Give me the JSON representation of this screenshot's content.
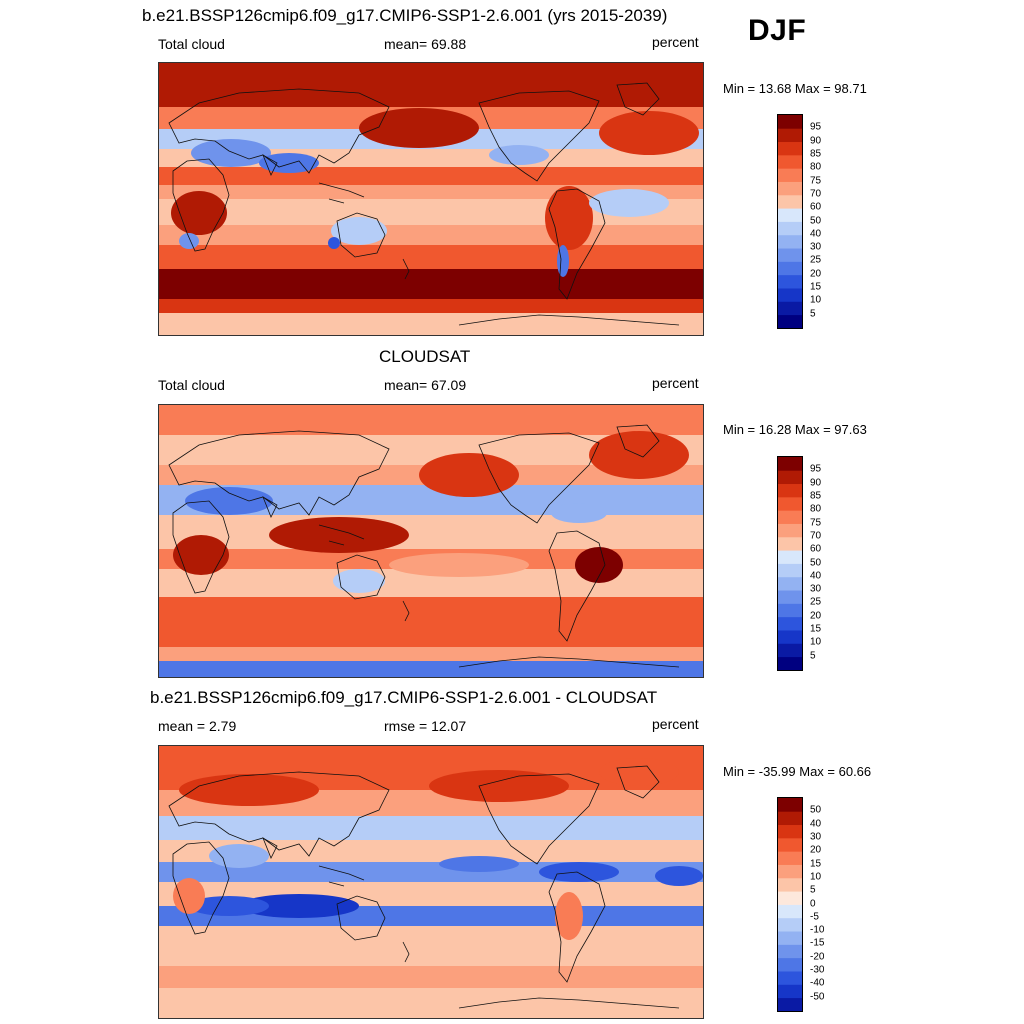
{
  "season": "DJF",
  "colors": {
    "warm": [
      "#fde8dc",
      "#fcc5a8",
      "#fba07d",
      "#f97c55",
      "#f0582f",
      "#d93512",
      "#b01a04",
      "#7d0000"
    ],
    "cool": [
      "#d8e7fb",
      "#b5cdf7",
      "#93b2f2",
      "#6f93ec",
      "#4e76e6",
      "#2d55dd",
      "#1636c8",
      "#0a1aa4",
      "#000080"
    ]
  },
  "panels": [
    {
      "title": "b.e21.BSSP126cmip6.f09_g17.CMIP6-SSP1-2.6.001 (yrs 2015-2039)",
      "left_label": "Total cloud",
      "center_label": "mean=  69.88",
      "right_label": "percent",
      "minmax": "Min =  13.68 Max =  98.71",
      "colorbar": {
        "levels": [
          "95",
          "90",
          "85",
          "80",
          "75",
          "70",
          "60",
          "50",
          "40",
          "30",
          "25",
          "20",
          "15",
          "10",
          "5"
        ],
        "zero_index": 7
      }
    },
    {
      "title": "CLOUDSAT",
      "left_label": "Total cloud",
      "center_label": "mean=  67.09",
      "right_label": "percent",
      "minmax": "Min =  16.28 Max =  97.63",
      "colorbar": {
        "levels": [
          "95",
          "90",
          "85",
          "80",
          "75",
          "70",
          "60",
          "50",
          "40",
          "30",
          "25",
          "20",
          "15",
          "10",
          "5"
        ],
        "zero_index": 7
      }
    },
    {
      "title": "b.e21.BSSP126cmip6.f09_g17.CMIP6-SSP1-2.6.001 - CLOUDSAT",
      "left_label": "mean =   2.79",
      "center_label": "rmse =  12.07",
      "right_label": "percent",
      "minmax": "Min = -35.99 Max =  60.66",
      "colorbar": {
        "levels": [
          "50",
          "40",
          "30",
          "20",
          "15",
          "10",
          "5",
          "0",
          "-5",
          "-10",
          "-15",
          "-20",
          "-30",
          "-40",
          "-50"
        ],
        "zero_index": 8
      }
    }
  ]
}
